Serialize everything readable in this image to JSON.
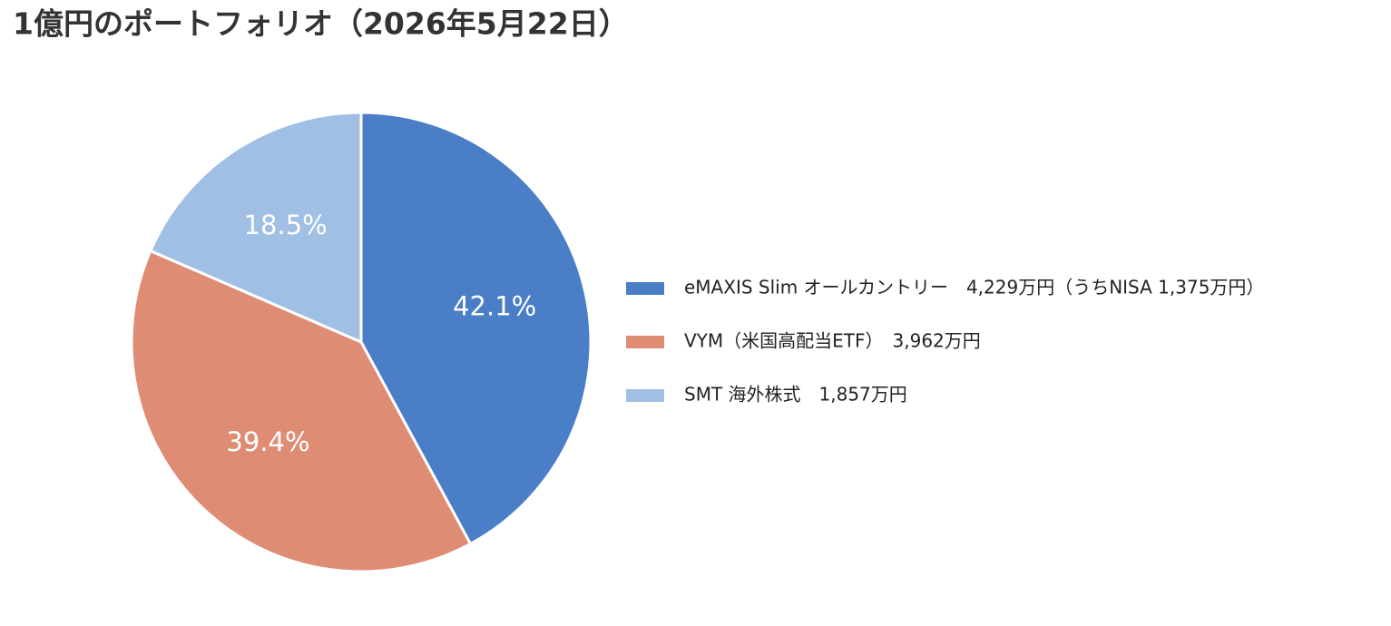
{
  "chart_data": {
    "type": "pie",
    "title": "1億円のポートフォリオ（2026年5月22日）",
    "categories": [
      "eMAXIS Slim オールカントリー　4,229万円（うちNISA 1,375万円）",
      "VYM（米国高配当ETF）　3,962万円",
      "SMT 海外株式　1,857万円"
    ],
    "values": [
      42.1,
      39.4,
      18.5
    ],
    "value_labels": [
      "42.1%",
      "39.4%",
      "18.5%"
    ],
    "colors": [
      "#4a7ec7",
      "#df8c74",
      "#a0bfe5"
    ],
    "legend": "right"
  }
}
